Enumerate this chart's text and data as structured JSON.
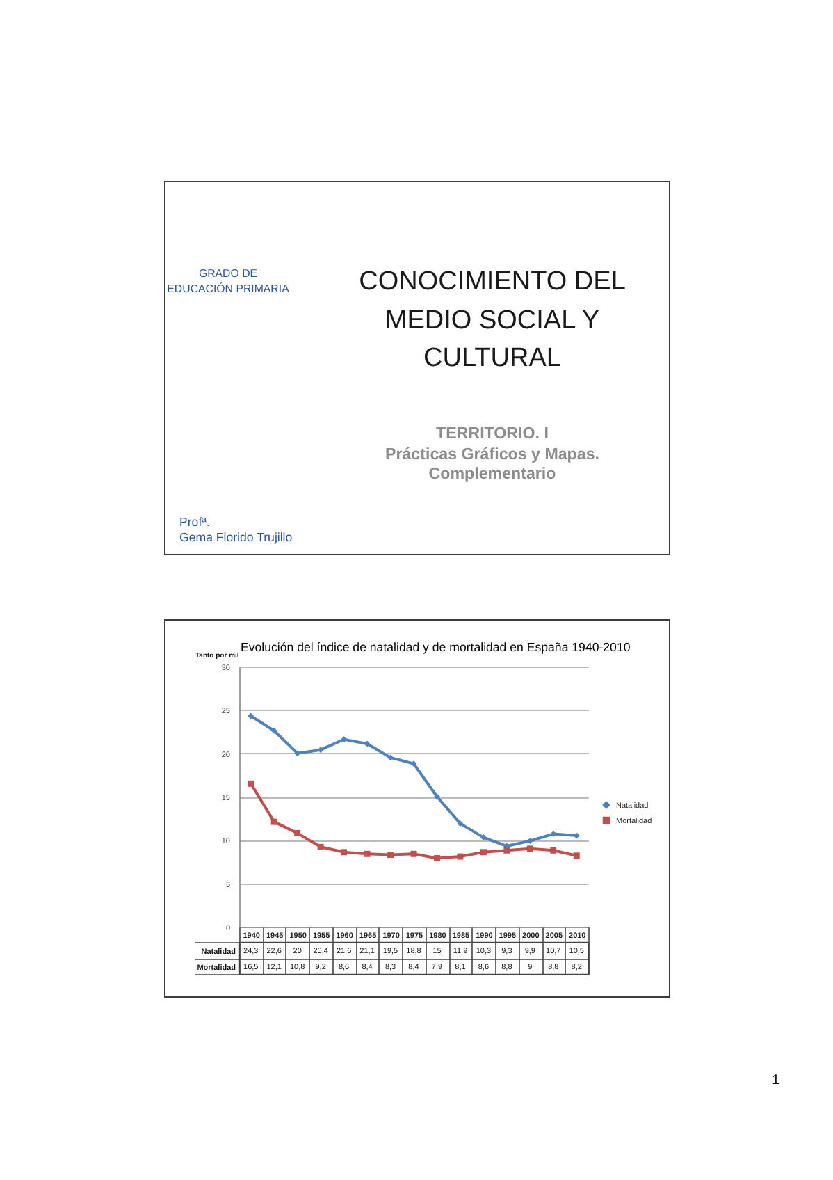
{
  "chart_data": [
    {
      "type": "other",
      "title": "CONOCIMIENTO DEL MEDIO SOCIAL Y CULTURAL",
      "subtitle": "TERRITORIO. I\nPrácticas Gráficos y Mapas. Complementario",
      "annotations": [
        "GRADO DE\nEDUCACIÓN PRIMARIA",
        "Profª.\nGema Florido Trujillo",
        "1"
      ]
    },
    {
      "type": "line",
      "title": "Evolución del índice de natalidad y de mortalidad en España 1940-2010",
      "ylabel": "Tanto por mil",
      "categories": [
        "1940",
        "1945",
        "1950",
        "1955",
        "1960",
        "1965",
        "1970",
        "1975",
        "1980",
        "1985",
        "1990",
        "1995",
        "2000",
        "2005",
        "2010"
      ],
      "series": [
        {
          "name": "Natalidad",
          "color": "#4f81bd",
          "marker": "diamond",
          "values": [
            24.3,
            22.6,
            20,
            20.4,
            21.6,
            21.1,
            19.5,
            18.8,
            15,
            11.9,
            10.3,
            9.3,
            9.9,
            10.7,
            10.5
          ],
          "value_labels": [
            "24,3",
            "22,6",
            "20",
            "20,4",
            "21,6",
            "21,1",
            "19,5",
            "18,8",
            "15",
            "11,9",
            "10,3",
            "9,3",
            "9,9",
            "10,7",
            "10,5"
          ]
        },
        {
          "name": "Mortalidad",
          "color": "#c0504d",
          "marker": "square",
          "values": [
            16.5,
            12.1,
            10.8,
            9.2,
            8.6,
            8.4,
            8.3,
            8.4,
            7.9,
            8.1,
            8.6,
            8.8,
            9,
            8.8,
            8.2
          ],
          "value_labels": [
            "16,5",
            "12,1",
            "10,8",
            "9,2",
            "8,6",
            "8,4",
            "8,3",
            "8,4",
            "7,9",
            "8,1",
            "8,6",
            "8,8",
            "9",
            "8,8",
            "8,2"
          ]
        }
      ],
      "ylim": [
        0,
        30
      ],
      "yticks": [
        0,
        5,
        10,
        15,
        20,
        25,
        30
      ],
      "grid": "y",
      "legend": "right",
      "line_style": "solid"
    }
  ]
}
